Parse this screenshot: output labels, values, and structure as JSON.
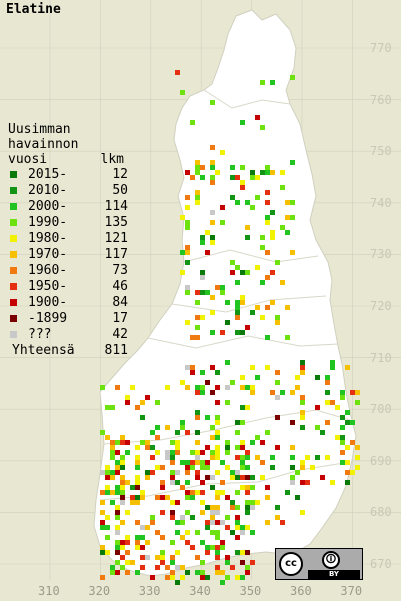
{
  "title": "Elatine",
  "legend": {
    "heading": [
      "Uusimman",
      "havainnon",
      "vuosi"
    ],
    "count_label": "lkm",
    "rows": [
      {
        "period": "2015-",
        "count": "12",
        "color": "#0a7a0a"
      },
      {
        "period": "2010-",
        "count": "50",
        "color": "#149414"
      },
      {
        "period": "2000-",
        "count": "114",
        "color": "#22c422"
      },
      {
        "period": "1990-",
        "count": "135",
        "color": "#6ee20e"
      },
      {
        "period": "1980-",
        "count": "121",
        "color": "#f2f200"
      },
      {
        "period": "1970-",
        "count": "117",
        "color": "#f6c000"
      },
      {
        "period": "1960-",
        "count": "73",
        "color": "#f07a10"
      },
      {
        "period": "1950-",
        "count": "46",
        "color": "#e43010"
      },
      {
        "period": "1900-",
        "count": "84",
        "color": "#c40000"
      },
      {
        "period": "-1899",
        "count": "17",
        "color": "#7a0000"
      },
      {
        "period": "???",
        "count": "42",
        "color": "#c8c8c8"
      }
    ],
    "total_label": "Yhteensä",
    "total": "811"
  },
  "grid_labels": {
    "north": [
      "770",
      "760",
      "750",
      "740",
      "730",
      "720",
      "710",
      "700",
      "690",
      "680",
      "670"
    ],
    "east": [
      "310",
      "320",
      "330",
      "340",
      "350",
      "360",
      "370"
    ]
  },
  "license": {
    "cc": "cc",
    "by": "BY",
    "icon": "person-icon"
  },
  "colors": {
    "background": "#e8e8d2",
    "land": "#ffffff",
    "grid": "#cfcfbd"
  }
}
